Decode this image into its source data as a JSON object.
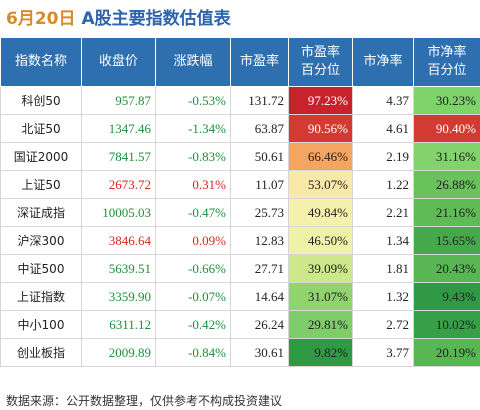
{
  "header": {
    "date": "6月20日",
    "title": "A股主要指数估值表"
  },
  "columns": [
    "指数名称",
    "收盘价",
    "涨跌幅",
    "市盈率",
    "市盈率\n百分位",
    "市净率",
    "市净率\n百分位"
  ],
  "rows": [
    {
      "name": "科创50",
      "close": "957.87",
      "close_dir": "down",
      "change": "-0.53%",
      "pe": "131.72",
      "pe_pct": "97.23%",
      "pe_pct_color": "#c8232c",
      "pe_pct_text": "#ffffff",
      "pb": "4.37",
      "pb_pct": "30.23%",
      "pb_pct_color": "#7ed36a",
      "pb_pct_text": "#222222"
    },
    {
      "name": "北证50",
      "close": "1347.46",
      "close_dir": "down",
      "change": "-1.34%",
      "pe": "63.87",
      "pe_pct": "90.56%",
      "pe_pct_color": "#d23b31",
      "pe_pct_text": "#ffffff",
      "pb": "4.61",
      "pb_pct": "90.40%",
      "pb_pct_color": "#d23b31",
      "pb_pct_text": "#ffffff"
    },
    {
      "name": "国证2000",
      "close": "7841.57",
      "close_dir": "down",
      "change": "-0.83%",
      "pe": "50.61",
      "pe_pct": "66.46%",
      "pe_pct_color": "#f4a561",
      "pe_pct_text": "#222222",
      "pb": "2.19",
      "pb_pct": "31.16%",
      "pb_pct_color": "#82d36c",
      "pb_pct_text": "#222222"
    },
    {
      "name": "上证50",
      "close": "2673.72",
      "close_dir": "up",
      "change": "0.31%",
      "pe": "11.07",
      "pe_pct": "53.07%",
      "pe_pct_color": "#f8e9a8",
      "pe_pct_text": "#222222",
      "pb": "1.22",
      "pb_pct": "26.88%",
      "pb_pct_color": "#69c25c",
      "pb_pct_text": "#222222"
    },
    {
      "name": "深证成指",
      "close": "10005.03",
      "close_dir": "down",
      "change": "-0.47%",
      "pe": "25.73",
      "pe_pct": "49.84%",
      "pe_pct_color": "#f6f0ad",
      "pe_pct_text": "#222222",
      "pb": "2.21",
      "pb_pct": "21.16%",
      "pb_pct_color": "#5fbb55",
      "pb_pct_text": "#222222"
    },
    {
      "name": "沪深300",
      "close": "3846.64",
      "close_dir": "up",
      "change": "0.09%",
      "pe": "12.83",
      "pe_pct": "46.50%",
      "pe_pct_color": "#eef2a9",
      "pe_pct_text": "#222222",
      "pb": "1.34",
      "pb_pct": "15.65%",
      "pb_pct_color": "#45a84a",
      "pb_pct_text": "#222222"
    },
    {
      "name": "中证500",
      "close": "5639.51",
      "close_dir": "down",
      "change": "-0.66%",
      "pe": "27.71",
      "pe_pct": "39.09%",
      "pe_pct_color": "#cde88a",
      "pe_pct_text": "#222222",
      "pb": "1.81",
      "pb_pct": "20.43%",
      "pb_pct_color": "#58b653",
      "pb_pct_text": "#222222"
    },
    {
      "name": "上证指数",
      "close": "3359.90",
      "close_dir": "down",
      "change": "-0.07%",
      "pe": "14.64",
      "pe_pct": "31.07%",
      "pe_pct_color": "#8fd46f",
      "pe_pct_text": "#222222",
      "pb": "1.32",
      "pb_pct": "9.43%",
      "pb_pct_color": "#2f9a43",
      "pb_pct_text": "#222222"
    },
    {
      "name": "中小100",
      "close": "6311.12",
      "close_dir": "down",
      "change": "-0.42%",
      "pe": "26.24",
      "pe_pct": "29.81%",
      "pe_pct_color": "#7fcd6a",
      "pe_pct_text": "#222222",
      "pb": "2.72",
      "pb_pct": "10.02%",
      "pb_pct_color": "#36a047",
      "pb_pct_text": "#222222"
    },
    {
      "name": "创业板指",
      "close": "2009.89",
      "close_dir": "down",
      "change": "-0.84%",
      "pe": "30.61",
      "pe_pct": "9.82%",
      "pe_pct_color": "#2f9a43",
      "pe_pct_text": "#222222",
      "pb": "3.77",
      "pb_pct": "20.19%",
      "pb_pct_color": "#58b653",
      "pb_pct_text": "#222222"
    }
  ],
  "footer": "数据来源：公开数据整理，仅供参考不构成投资建议"
}
